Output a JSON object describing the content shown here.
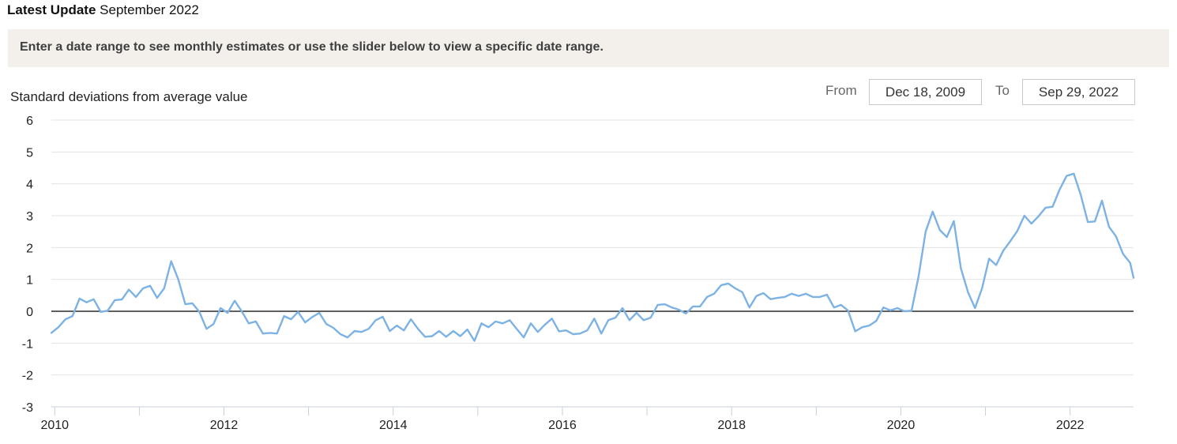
{
  "header": {
    "latest_update_label": "Latest Update",
    "latest_update_value": "September 2022"
  },
  "banner": {
    "text": "Enter a date range to see monthly estimates or use the slider below to view a specific date range."
  },
  "range": {
    "from_label": "From",
    "from_value": "Dec 18, 2009",
    "to_label": "To",
    "to_value": "Sep 29, 2022"
  },
  "colors": {
    "line": "#7db2e4",
    "grid": "#e3e3e3",
    "zero_line": "#000000",
    "banner_bg": "#f3f0eb"
  },
  "chart_data": {
    "type": "line",
    "ylabel": "Standard deviations from average value",
    "xlabel": "",
    "ylim": [
      -3,
      6
    ],
    "xlim": [
      2009.96,
      2022.75
    ],
    "yticks": [
      "6",
      "5",
      "4",
      "3",
      "2",
      "1",
      "0",
      "-1",
      "-2",
      "-3"
    ],
    "xticks": [
      "2010",
      "2012",
      "2014",
      "2016",
      "2018",
      "2020",
      "2022"
    ],
    "grid": true,
    "series": [
      {
        "x_start": 2009.96,
        "x_step": 0.08333,
        "values": [
          -0.68,
          -0.5,
          -0.25,
          -0.15,
          0.4,
          0.28,
          0.38,
          -0.02,
          0.02,
          0.35,
          0.37,
          0.68,
          0.45,
          0.72,
          0.8,
          0.42,
          0.72,
          1.57,
          1.0,
          0.22,
          0.25,
          -0.02,
          -0.55,
          -0.4,
          0.1,
          -0.05,
          0.33,
          0.0,
          -0.38,
          -0.32,
          -0.7,
          -0.68,
          -0.7,
          -0.15,
          -0.25,
          -0.02,
          -0.35,
          -0.18,
          -0.05,
          -0.4,
          -0.52,
          -0.72,
          -0.82,
          -0.62,
          -0.65,
          -0.55,
          -0.28,
          -0.17,
          -0.62,
          -0.45,
          -0.6,
          -0.25,
          -0.55,
          -0.8,
          -0.78,
          -0.62,
          -0.8,
          -0.62,
          -0.78,
          -0.57,
          -0.93,
          -0.38,
          -0.5,
          -0.32,
          -0.38,
          -0.28,
          -0.55,
          -0.82,
          -0.38,
          -0.65,
          -0.42,
          -0.23,
          -0.63,
          -0.6,
          -0.72,
          -0.7,
          -0.6,
          -0.23,
          -0.7,
          -0.28,
          -0.2,
          0.1,
          -0.28,
          -0.05,
          -0.28,
          -0.2,
          0.2,
          0.22,
          0.12,
          0.05,
          -0.07,
          0.15,
          0.15,
          0.45,
          0.55,
          0.82,
          0.87,
          0.72,
          0.6,
          0.12,
          0.48,
          0.57,
          0.38,
          0.42,
          0.45,
          0.55,
          0.48,
          0.55,
          0.45,
          0.45,
          0.52,
          0.12,
          0.2,
          0.02,
          -0.63,
          -0.5,
          -0.45,
          -0.3,
          0.12,
          0.03,
          0.1,
          0.0,
          0.02,
          1.1,
          2.5,
          3.13,
          2.55,
          2.33,
          2.83,
          1.35,
          0.6,
          0.1,
          0.72,
          1.65,
          1.45,
          1.9,
          2.2,
          2.52,
          3.0,
          2.75,
          2.98,
          3.25,
          3.28,
          3.82,
          4.25,
          4.32,
          3.65,
          2.8,
          2.82,
          3.47,
          2.65,
          2.35,
          1.8,
          1.52,
          1.05
        ]
      }
    ]
  }
}
